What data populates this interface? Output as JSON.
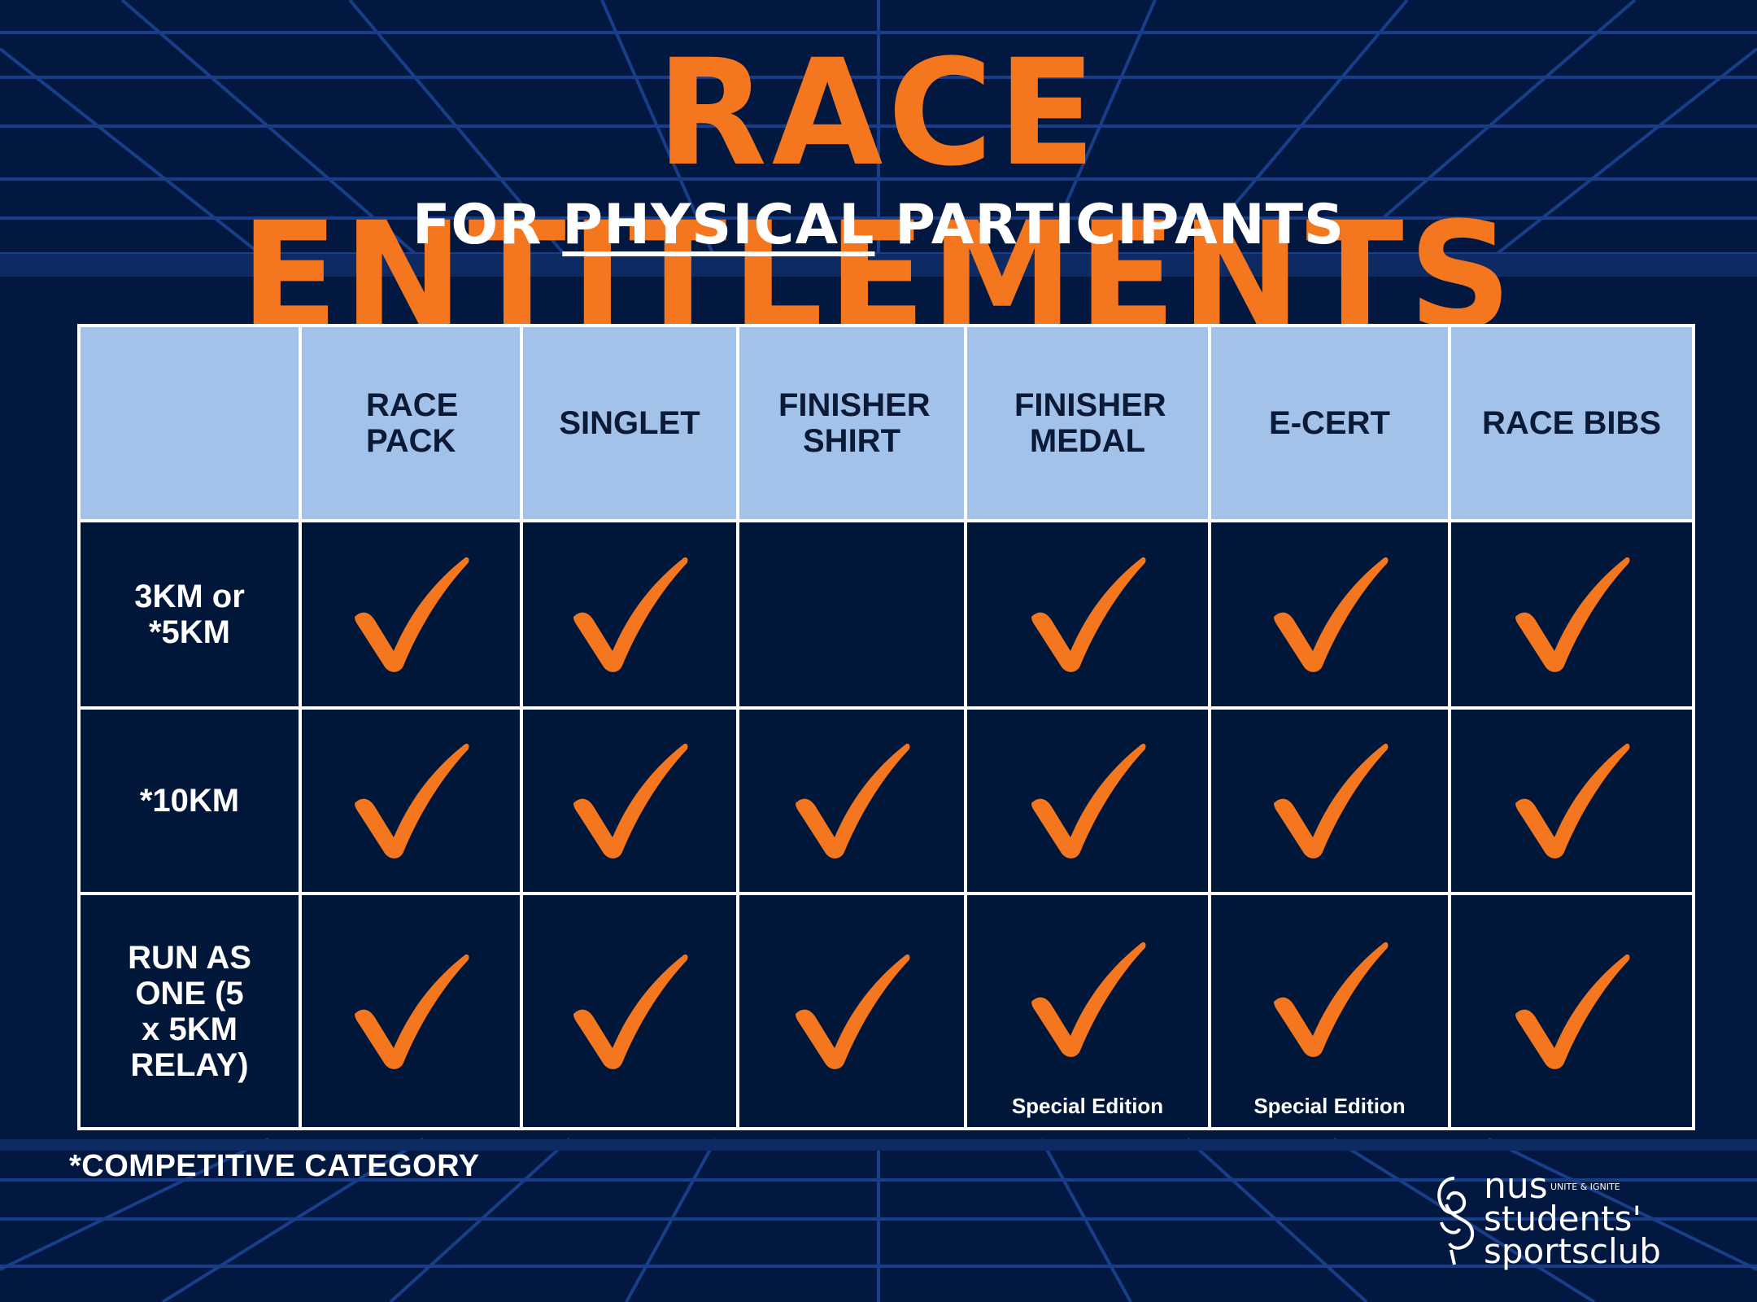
{
  "title": "RACE ENTITLEMENTS",
  "subtitle": {
    "prefix": "FOR",
    "emphasis": "PHYSICAL",
    "suffix": "PARTICIPANTS"
  },
  "table": {
    "headers": [
      "RACE PACK",
      "SINGLET",
      "FINISHER SHIRT",
      "FINISHER MEDAL",
      "E-CERT",
      "RACE BIBS"
    ],
    "rows": [
      {
        "label": "3KM or *5KM",
        "checks": [
          true,
          true,
          false,
          true,
          true,
          true
        ],
        "notes": [
          "",
          "",
          "",
          "",
          "",
          ""
        ]
      },
      {
        "label": "*10KM",
        "checks": [
          true,
          true,
          true,
          true,
          true,
          true
        ],
        "notes": [
          "",
          "",
          "",
          "",
          "",
          ""
        ]
      },
      {
        "label": "RUN AS ONE (5 x 5KM RELAY)",
        "checks": [
          true,
          true,
          true,
          true,
          true,
          true
        ],
        "notes": [
          "",
          "",
          "",
          "Special Edition",
          "Special Edition",
          ""
        ]
      }
    ]
  },
  "footnote": "*COMPETITIVE CATEGORY",
  "logo": {
    "line1": "nus",
    "tag": "UNITE & IGNITE",
    "line2": "students'",
    "line3": "sportsclub"
  },
  "colors": {
    "background": "#031840",
    "accent": "#f4761f",
    "header": "#a3c2ea",
    "cell": "#00173a"
  },
  "icons": {
    "check": "check-mark-icon"
  }
}
